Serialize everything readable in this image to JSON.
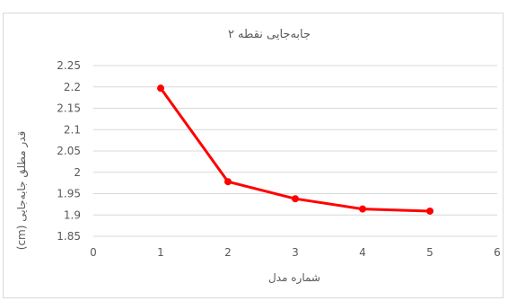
{
  "chart_data": {
    "type": "line",
    "title": "جابه‌جایی نقطه ۲",
    "xlabel": "شماره مدل",
    "ylabel": "قدر مطلق جابه‌جایی (cm)",
    "x": [
      1,
      2,
      3,
      4,
      5
    ],
    "series": [
      {
        "values": [
          2.197,
          1.978,
          1.938,
          1.914,
          1.909
        ],
        "color": "#ff0000"
      }
    ],
    "xlim": [
      0,
      6
    ],
    "ylim": [
      1.85,
      2.25
    ],
    "xticks": [
      0,
      1,
      2,
      3,
      4,
      5,
      6
    ],
    "yticks": [
      1.85,
      1.9,
      1.95,
      2,
      2.05,
      2.1,
      2.15,
      2.2,
      2.25
    ],
    "xtick_labels": [
      "0",
      "1",
      "2",
      "3",
      "4",
      "5",
      "6"
    ],
    "ytick_labels": [
      "1.85",
      "1.9",
      "1.95",
      "2",
      "2.05",
      "2.1",
      "2.15",
      "2.2",
      "2.25"
    ],
    "grid": "horizontal",
    "gridColor": "#d9d9d9",
    "legend": "none"
  }
}
